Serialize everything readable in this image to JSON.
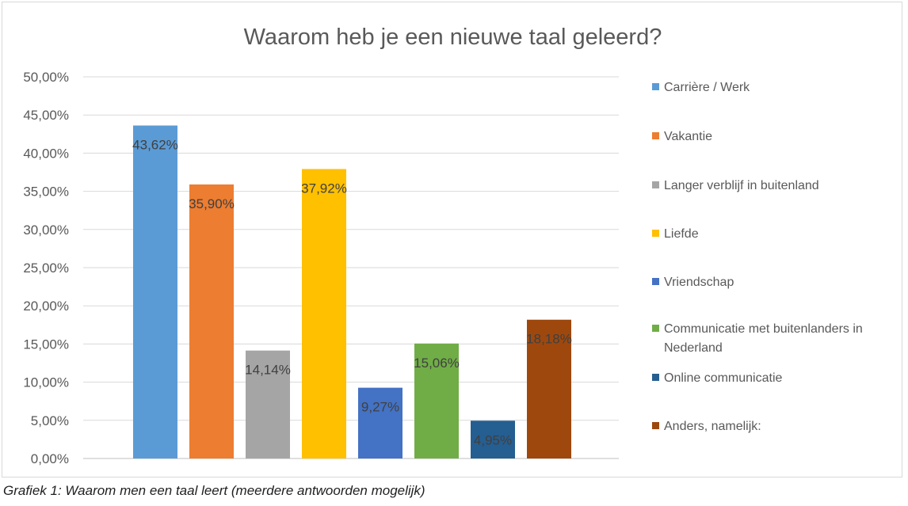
{
  "chart_data": {
    "type": "bar",
    "title": "Waarom heb je een nieuwe taal geleerd?",
    "xlabel": "",
    "ylabel": "",
    "ylim": [
      0,
      50
    ],
    "yticks": [
      "0,00%",
      "5,00%",
      "10,00%",
      "15,00%",
      "20,00%",
      "25,00%",
      "30,00%",
      "35,00%",
      "40,00%",
      "45,00%",
      "50,00%"
    ],
    "grid": true,
    "legend_position": "right",
    "categories": [
      "Carrière / Werk",
      "Vakantie",
      "Langer verblijf in buitenland",
      "Liefde",
      "Vriendschap",
      "Communicatie met buitenlanders in Nederland",
      "Online communicatie",
      "Anders, namelijk:"
    ],
    "values": [
      43.62,
      35.9,
      14.14,
      37.92,
      9.27,
      15.06,
      4.95,
      18.18
    ],
    "value_labels": [
      "43,62%",
      "35,90%",
      "14,14%",
      "37,92%",
      "9,27%",
      "15,06%",
      "4,95%",
      "18,18%"
    ],
    "colors": [
      "#5b9bd5",
      "#ed7d31",
      "#a5a5a5",
      "#ffc000",
      "#4472c4",
      "#70ad47",
      "#255e91",
      "#9e480e"
    ]
  },
  "caption": "Grafiek 1: Waarom men een taal leert (meerdere antwoorden mogelijk)"
}
